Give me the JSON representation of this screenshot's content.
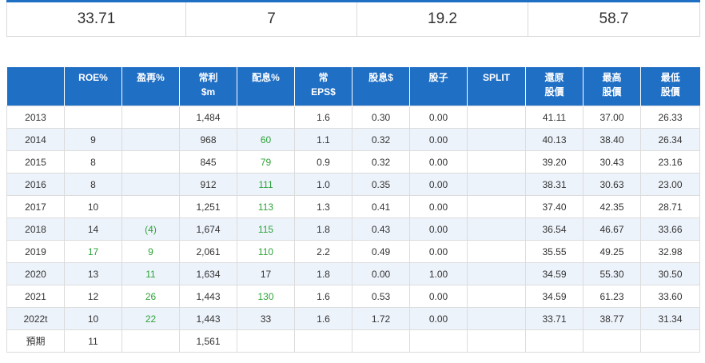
{
  "summary": [
    "33.71",
    "7",
    "19.2",
    "58.7"
  ],
  "table": {
    "headers": [
      [
        "",
        ""
      ],
      [
        "ROE%",
        ""
      ],
      [
        "盈再%",
        ""
      ],
      [
        "常利",
        "$m"
      ],
      [
        "配息%",
        ""
      ],
      [
        "常",
        "EPS$"
      ],
      [
        "股息$",
        ""
      ],
      [
        "股子",
        ""
      ],
      [
        "SPLIT",
        ""
      ],
      [
        "還原",
        "股價"
      ],
      [
        "最高",
        "股價"
      ],
      [
        "最低",
        "股價"
      ]
    ],
    "rows": [
      [
        "2013",
        "",
        "",
        "1,484",
        "",
        "1.6",
        "0.30",
        "0.00",
        "",
        "41.11",
        "37.00",
        "26.33"
      ],
      [
        "2014",
        "9",
        "",
        "968",
        "60",
        "1.1",
        "0.32",
        "0.00",
        "",
        "40.13",
        "38.40",
        "26.34"
      ],
      [
        "2015",
        "8",
        "",
        "845",
        "79",
        "0.9",
        "0.32",
        "0.00",
        "",
        "39.20",
        "30.43",
        "23.16"
      ],
      [
        "2016",
        "8",
        "",
        "912",
        "111",
        "1.0",
        "0.35",
        "0.00",
        "",
        "38.31",
        "30.63",
        "23.00"
      ],
      [
        "2017",
        "10",
        "",
        "1,251",
        "113",
        "1.3",
        "0.41",
        "0.00",
        "",
        "37.40",
        "42.35",
        "28.71"
      ],
      [
        "2018",
        "14",
        "(4)",
        "1,674",
        "115",
        "1.8",
        "0.43",
        "0.00",
        "",
        "36.54",
        "46.67",
        "33.66"
      ],
      [
        "2019",
        "17",
        "9",
        "2,061",
        "110",
        "2.2",
        "0.49",
        "0.00",
        "",
        "35.55",
        "49.25",
        "32.98"
      ],
      [
        "2020",
        "13",
        "11",
        "1,634",
        "17",
        "1.8",
        "0.00",
        "1.00",
        "",
        "34.59",
        "55.30",
        "30.50"
      ],
      [
        "2021",
        "12",
        "26",
        "1,443",
        "130",
        "1.6",
        "0.53",
        "0.00",
        "",
        "34.59",
        "61.23",
        "33.60"
      ],
      [
        "2022t",
        "10",
        "22",
        "1,443",
        "33",
        "1.6",
        "1.72",
        "0.00",
        "",
        "33.71",
        "38.77",
        "31.34"
      ],
      [
        "預期",
        "11",
        "",
        "1,561",
        "",
        "",
        "",
        "",
        "",
        "",
        "",
        ""
      ]
    ],
    "green_cells": [
      [
        1,
        4
      ],
      [
        2,
        4
      ],
      [
        3,
        4
      ],
      [
        4,
        4
      ],
      [
        5,
        2
      ],
      [
        5,
        4
      ],
      [
        6,
        1
      ],
      [
        6,
        2
      ],
      [
        6,
        4
      ],
      [
        7,
        2
      ],
      [
        8,
        2
      ],
      [
        8,
        4
      ],
      [
        9,
        2
      ]
    ]
  }
}
